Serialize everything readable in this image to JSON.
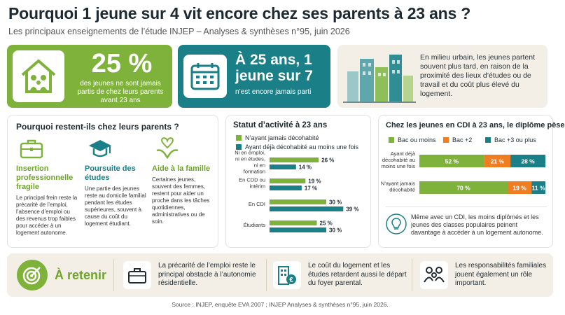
{
  "header": {
    "title": "Pourquoi 1 jeune sur 4 vit encore chez ses parents à 23 ans ?",
    "subtitle": "Les principaux enseignements de l’étude INJEP – Analyses & synthèses n°95, juin 2026"
  },
  "colors": {
    "green": "#7fb23a",
    "teal": "#1a7f86",
    "orange": "#ef7d22",
    "beige": "#f3efe6"
  },
  "card1": {
    "icon": "house-family-icon",
    "big": "25 %",
    "text": "des jeunes ne sont jamais partis de chez leurs parents avant 23 ans"
  },
  "card2": {
    "icon": "calendar-icon",
    "big": "À 25 ans, 1 jeune sur 7",
    "text": "n’est encore jamais parti"
  },
  "card3": {
    "icon": "city-buildings-icon",
    "text": "En milieu urbain, les jeunes partent souvent plus tard, en raison de la proximité des lieux d’études ou de travail et du coût plus élevé du logement."
  },
  "reasons": {
    "title": "Pourquoi restent-ils chez leurs parents ?",
    "items": [
      {
        "icon": "briefcase-icon",
        "title": "Insertion professionnelle fragile",
        "text": "Le principal frein reste la précarité de l’emploi, l’absence d’emploi ou des revenus trop faibles pour accéder à un logement autonome."
      },
      {
        "icon": "graduation-cap-icon",
        "title": "Poursuite des études",
        "text": "Une partie des jeunes reste au domicile familial pendant les études supérieures, souvent à cause du coût du logement étudiant."
      },
      {
        "icon": "hands-heart-icon",
        "title": "Aide à la famille",
        "text": "Certaines jeunes, souvent des femmes, restent pour aider un proche dans les tâches quotidiennes, administratives ou de soin."
      }
    ]
  },
  "chart_data": [
    {
      "type": "bar",
      "title": "Statut d’activité à 23 ans",
      "categories": [
        "Ni en emploi, ni en études, ni en formation",
        "En CDD ou intérim",
        "En CDI",
        "Étudiants"
      ],
      "series": [
        {
          "name": "N’ayant jamais décohabité",
          "color": "#7fb23a",
          "values": [
            26,
            19,
            30,
            25
          ]
        },
        {
          "name": "Ayant déjà décohabité au moins une fois",
          "color": "#1a7f86",
          "values": [
            14,
            17,
            39,
            30
          ]
        }
      ],
      "value_suffix": " %",
      "xlim": [
        0,
        40
      ]
    },
    {
      "type": "bar",
      "stacked": true,
      "title": "Chez les jeunes en CDI à 23 ans, le diplôme pèse",
      "categories": [
        "Ayant déjà décohabité au moins une fois",
        "N’ayant jamais décohabité"
      ],
      "series": [
        {
          "name": "Bac ou moins",
          "color": "#7fb23a",
          "values": [
            52,
            70
          ]
        },
        {
          "name": "Bac +2",
          "color": "#ef7d22",
          "values": [
            21,
            19
          ]
        },
        {
          "name": "Bac +3 ou plus",
          "color": "#1a7f86",
          "values": [
            28,
            11
          ]
        }
      ],
      "value_suffix": " %",
      "note_icon": "lightbulb-icon",
      "note": "Même avec un CDI, les moins diplômés et les jeunes des classes populaires peinent davantage à accéder à un logement autonome."
    }
  ],
  "retenir": {
    "icon": "target-icon",
    "label": "À retenir",
    "items": [
      {
        "icon": "briefcase-icon",
        "text": "La précarité de l’emploi reste le principal obstacle à l’autonomie résidentielle."
      },
      {
        "icon": "building-euro-icon",
        "text": "Le coût du logement et les études retardent aussi le départ du foyer parental."
      },
      {
        "icon": "family-icon",
        "text": "Les responsabilités familiales jouent également un rôle important."
      }
    ]
  },
  "source": "Source : INJEP, enquête EVA 2007 ; INJEP Analyses & synthèses n°95, juin 2026."
}
